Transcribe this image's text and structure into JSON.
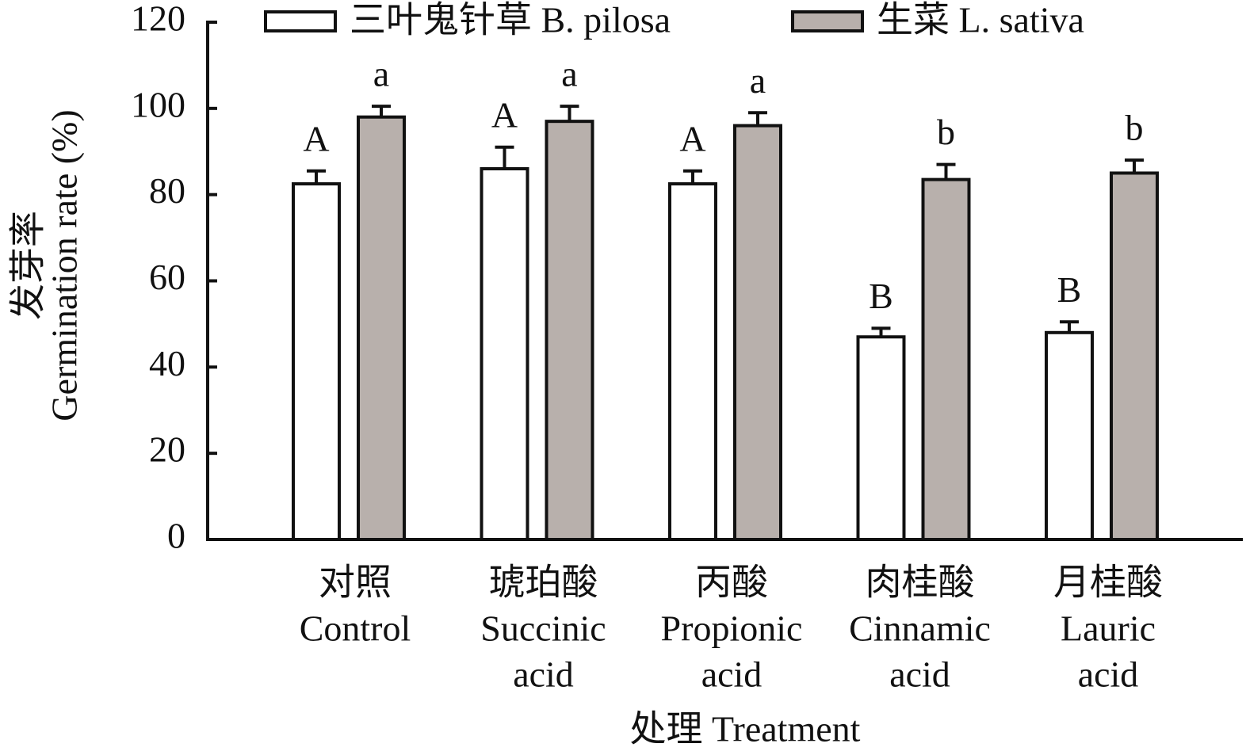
{
  "chart_data": {
    "type": "bar",
    "y_label": [
      "发芽率",
      "Germination rate (%)"
    ],
    "x_label": "处理 Treatment",
    "categories": [
      [
        "对照",
        "Control"
      ],
      [
        "琥珀酸",
        "Succinic",
        "acid"
      ],
      [
        "丙酸",
        "Propionic",
        "acid"
      ],
      [
        "肉桂酸",
        "Cinnamic",
        "acid"
      ],
      [
        "月桂酸",
        "Lauric",
        "acid"
      ]
    ],
    "series": [
      {
        "name": "三叶鬼针草 B. pilosa",
        "color": "#ffffff",
        "values": [
          82.5,
          86,
          82.5,
          47,
          48
        ],
        "errors": [
          3,
          5,
          3,
          2,
          2.5
        ],
        "letters": [
          "A",
          "A",
          "A",
          "B",
          "B"
        ]
      },
      {
        "name": "生菜 L. sativa",
        "color": "#b8b0ac",
        "values": [
          98,
          97,
          96,
          83.5,
          85
        ],
        "errors": [
          2.5,
          3.5,
          3,
          3.5,
          3
        ],
        "letters": [
          "a",
          "a",
          "a",
          "b",
          "b"
        ]
      }
    ],
    "ylim": [
      0,
      120
    ],
    "yticks": [
      0,
      20,
      40,
      60,
      80,
      100,
      120
    ]
  }
}
